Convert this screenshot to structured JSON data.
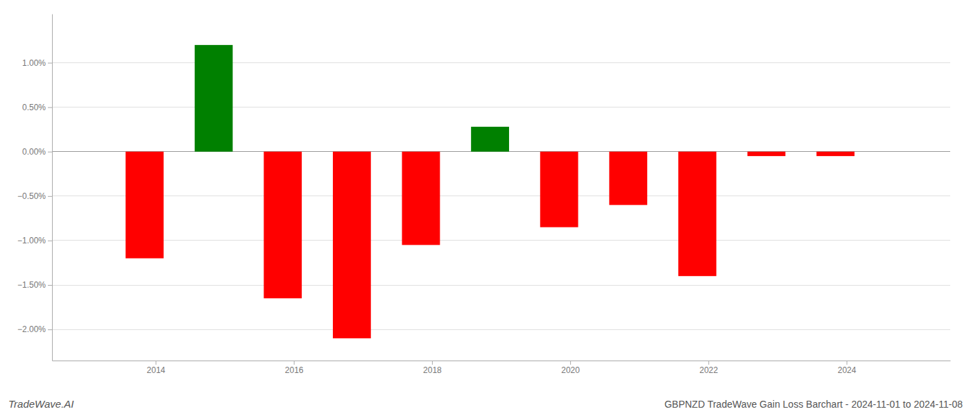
{
  "chart_data": {
    "type": "bar",
    "title": "GBPNZD TradeWave Gain Loss Barchart - 2024-11-01 to 2024-11-08",
    "annotations": [
      "TradeWave.AI"
    ],
    "x": [
      2013.84,
      2014.84,
      2015.84,
      2016.84,
      2017.84,
      2018.84,
      2019.84,
      2020.84,
      2021.84,
      2022.84,
      2023.84
    ],
    "values": [
      -1.2,
      1.2,
      -1.65,
      -2.1,
      -1.05,
      0.28,
      -0.85,
      -0.6,
      -1.4,
      -0.05,
      -0.05
    ],
    "colors": [
      "#ff0000",
      "#008000",
      "#ff0000",
      "#ff0000",
      "#ff0000",
      "#008000",
      "#ff0000",
      "#ff0000",
      "#ff0000",
      "#ff0000",
      "#ff0000"
    ],
    "xlim": [
      2012.5,
      2025.5
    ],
    "xticks": [
      2014,
      2016,
      2018,
      2020,
      2022,
      2024
    ],
    "ylim": [
      -2.35,
      1.55
    ],
    "yticks": [
      {
        "value": -2.0,
        "label": "−2.00%"
      },
      {
        "value": -1.5,
        "label": "−1.50%"
      },
      {
        "value": -1.0,
        "label": "−1.00%"
      },
      {
        "value": -0.5,
        "label": "−0.50%"
      },
      {
        "value": 0.0,
        "label": "0.00%"
      },
      {
        "value": 0.5,
        "label": "0.50%"
      },
      {
        "value": 1.0,
        "label": "1.00%"
      }
    ],
    "grid": true
  }
}
